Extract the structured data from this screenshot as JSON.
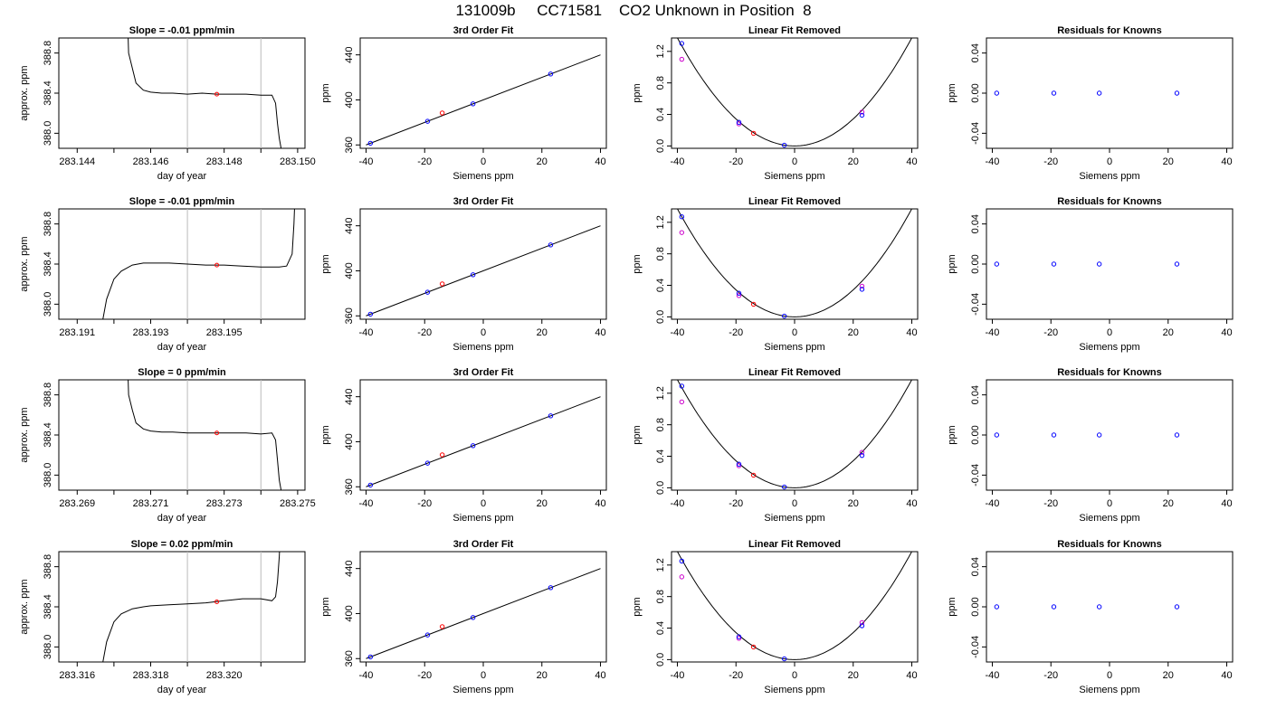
{
  "figure": {
    "title": "131009b     CC71581    CO2 Unknown in Position  8"
  },
  "colors": {
    "trace": "#000000",
    "known_point": "#0000ff",
    "unknown_point": "#ff0000",
    "alt_point": "#cc00cc",
    "window_line": "#bbbbbb"
  },
  "chart_data": [
    {
      "type": "line",
      "title": "Slope =  -0.01  ppm/min",
      "xlabel": "day of year",
      "ylabel": "approx. ppm",
      "xlim": [
        283.1435,
        283.1502
      ],
      "ylim": [
        387.85,
        388.95
      ],
      "xticks": [
        "283.144",
        "283.146",
        "283.148",
        "283.150"
      ],
      "xtick_values": [
        283.144,
        283.146,
        283.148,
        283.15
      ],
      "xminor_values": [
        283.145,
        283.147,
        283.149
      ],
      "yticks": [
        "388.0",
        "388.4",
        "388.8"
      ],
      "ytick_values": [
        388.0,
        388.4,
        388.8
      ],
      "window": [
        283.147,
        283.149
      ],
      "marker": {
        "x": 283.1478,
        "y": 388.39
      },
      "series": [
        {
          "x": [
            283.14535,
            283.1454,
            283.1455,
            283.1456,
            283.1458,
            283.146,
            283.1463,
            283.1466,
            283.147,
            283.1474,
            283.1478,
            283.1482,
            283.1486,
            283.149,
            283.1493,
            283.1494,
            283.14945,
            283.1495,
            283.14955
          ],
          "values": [
            389.4,
            388.8,
            388.65,
            388.5,
            388.43,
            388.41,
            388.4,
            388.4,
            388.39,
            388.4,
            388.39,
            388.39,
            388.39,
            388.38,
            388.38,
            388.3,
            388.1,
            387.95,
            387.85
          ]
        }
      ]
    },
    {
      "type": "scatter",
      "title": "3rd Order Fit",
      "xlabel": "Siemens ppm",
      "ylabel": "ppm",
      "xlim": [
        -42,
        42
      ],
      "ylim": [
        357,
        455
      ],
      "xticks": [
        "-40",
        "-20",
        "0",
        "20",
        "40"
      ],
      "xtick_values": [
        -40,
        -20,
        0,
        20,
        40
      ],
      "yticks": [
        "360",
        "400",
        "440"
      ],
      "ytick_values": [
        360,
        400,
        440
      ],
      "known": {
        "x": [
          -38.5,
          -19,
          -3.5,
          23
        ],
        "y": [
          361.5,
          381,
          396.5,
          423
        ]
      },
      "unknown": {
        "x": [
          -14
        ],
        "y": [
          388.4
        ]
      },
      "fit": {
        "x": [
          -40,
          40
        ],
        "y": [
          360,
          440
        ]
      }
    },
    {
      "type": "scatter",
      "title": "Linear Fit Removed",
      "xlabel": "Siemens ppm",
      "ylabel": "ppm",
      "xlim": [
        -42,
        42
      ],
      "ylim": [
        -0.03,
        1.37
      ],
      "xticks": [
        "-40",
        "-20",
        "0",
        "20",
        "40"
      ],
      "xtick_values": [
        -40,
        -20,
        0,
        20,
        40
      ],
      "yticks": [
        "0.0",
        "0.4",
        "0.8",
        "1.2"
      ],
      "ytick_values": [
        0,
        0.4,
        0.8,
        1.2
      ],
      "known": {
        "x": [
          -38.5,
          -19,
          -3.5,
          23
        ],
        "y": [
          1.3,
          0.3,
          0.01,
          0.39
        ]
      },
      "alt": {
        "x": [
          -38.5,
          -19,
          23
        ],
        "y": [
          1.1,
          0.28,
          0.43
        ]
      },
      "unknown": {
        "x": [
          -14
        ],
        "y": [
          0.16
        ]
      },
      "fit_curve": {
        "vertex": 0,
        "a": 0.000857
      }
    },
    {
      "type": "scatter",
      "title": "Residuals for Knowns",
      "xlabel": "Siemens ppm",
      "ylabel": "ppm",
      "xlim": [
        -42,
        42
      ],
      "ylim": [
        -0.055,
        0.055
      ],
      "xticks": [
        "-40",
        "-20",
        "0",
        "20",
        "40"
      ],
      "xtick_values": [
        -40,
        -20,
        0,
        20,
        40
      ],
      "yticks": [
        "-0.04",
        "0.00",
        "0.04"
      ],
      "ytick_values": [
        -0.04,
        0,
        0.04
      ],
      "known": {
        "x": [
          -38.5,
          -19,
          -3.5,
          23
        ],
        "y": [
          0,
          0,
          0,
          0
        ]
      }
    },
    {
      "type": "line",
      "title": "Slope =  -0.01  ppm/min",
      "xlabel": "day of year",
      "ylabel": "approx. ppm",
      "xlim": [
        283.1905,
        283.1972
      ],
      "ylim": [
        387.85,
        388.95
      ],
      "xticks": [
        "283.191",
        "283.193",
        "283.195"
      ],
      "xtick_values": [
        283.191,
        283.193,
        283.195
      ],
      "xminor_values": [
        283.192,
        283.194,
        283.196
      ],
      "yticks": [
        "388.0",
        "388.4",
        "388.8"
      ],
      "ytick_values": [
        388.0,
        388.4,
        388.8
      ],
      "window": [
        283.194,
        283.196
      ],
      "marker": {
        "x": 283.1948,
        "y": 388.39
      },
      "series": [
        {
          "x": [
            283.1917,
            283.1918,
            283.192,
            283.1922,
            283.1925,
            283.1928,
            283.193,
            283.1935,
            283.194,
            283.1945,
            283.195,
            283.1955,
            283.196,
            283.1965,
            283.1967,
            283.19685,
            283.1969,
            283.19695
          ],
          "values": [
            387.85,
            388.05,
            388.25,
            388.33,
            388.39,
            388.41,
            388.41,
            388.41,
            388.4,
            388.39,
            388.39,
            388.38,
            388.37,
            388.37,
            388.38,
            388.5,
            388.8,
            389.3
          ]
        }
      ]
    },
    {
      "type": "scatter",
      "title": "3rd Order Fit",
      "xlabel": "Siemens ppm",
      "ylabel": "ppm",
      "xlim": [
        -42,
        42
      ],
      "ylim": [
        357,
        455
      ],
      "xticks": [
        "-40",
        "-20",
        "0",
        "20",
        "40"
      ],
      "xtick_values": [
        -40,
        -20,
        0,
        20,
        40
      ],
      "yticks": [
        "360",
        "400",
        "440"
      ],
      "ytick_values": [
        360,
        400,
        440
      ],
      "known": {
        "x": [
          -38.5,
          -19,
          -3.5,
          23
        ],
        "y": [
          361.5,
          381,
          396.5,
          423
        ]
      },
      "unknown": {
        "x": [
          -14
        ],
        "y": [
          388.4
        ]
      },
      "fit": {
        "x": [
          -40,
          40
        ],
        "y": [
          360,
          440
        ]
      }
    },
    {
      "type": "scatter",
      "title": "Linear Fit Removed",
      "xlabel": "Siemens ppm",
      "ylabel": "ppm",
      "xlim": [
        -42,
        42
      ],
      "ylim": [
        -0.03,
        1.37
      ],
      "xticks": [
        "-40",
        "-20",
        "0",
        "20",
        "40"
      ],
      "xtick_values": [
        -40,
        -20,
        0,
        20,
        40
      ],
      "yticks": [
        "0.0",
        "0.4",
        "0.8",
        "1.2"
      ],
      "ytick_values": [
        0,
        0.4,
        0.8,
        1.2
      ],
      "known": {
        "x": [
          -38.5,
          -19,
          -3.5,
          23
        ],
        "y": [
          1.27,
          0.3,
          0.01,
          0.35
        ]
      },
      "alt": {
        "x": [
          -38.5,
          -19,
          23
        ],
        "y": [
          1.07,
          0.27,
          0.39
        ]
      },
      "unknown": {
        "x": [
          -14
        ],
        "y": [
          0.16
        ]
      },
      "fit_curve": {
        "vertex": 0,
        "a": 0.000857
      }
    },
    {
      "type": "scatter",
      "title": "Residuals for Knowns",
      "xlabel": "Siemens ppm",
      "ylabel": "ppm",
      "xlim": [
        -42,
        42
      ],
      "ylim": [
        -0.055,
        0.055
      ],
      "xticks": [
        "-40",
        "-20",
        "0",
        "20",
        "40"
      ],
      "xtick_values": [
        -40,
        -20,
        0,
        20,
        40
      ],
      "yticks": [
        "-0.04",
        "0.00",
        "0.04"
      ],
      "ytick_values": [
        -0.04,
        0,
        0.04
      ],
      "known": {
        "x": [
          -38.5,
          -19,
          -3.5,
          23
        ],
        "y": [
          0,
          0,
          0,
          0
        ]
      }
    },
    {
      "type": "line",
      "title": "Slope =  0  ppm/min",
      "xlabel": "day of year",
      "ylabel": "approx. ppm",
      "xlim": [
        283.2685,
        283.2752
      ],
      "ylim": [
        387.85,
        388.95
      ],
      "xticks": [
        "283.269",
        "283.271",
        "283.273",
        "283.275"
      ],
      "xtick_values": [
        283.269,
        283.271,
        283.273,
        283.275
      ],
      "xminor_values": [
        283.27,
        283.272,
        283.274
      ],
      "yticks": [
        "388.0",
        "388.4",
        "388.8"
      ],
      "ytick_values": [
        388.0,
        388.4,
        388.8
      ],
      "window": [
        283.272,
        283.274
      ],
      "marker": {
        "x": 283.2728,
        "y": 388.42
      },
      "series": [
        {
          "x": [
            283.27035,
            283.2704,
            283.2705,
            283.2706,
            283.2708,
            283.271,
            283.2713,
            283.2716,
            283.272,
            283.2724,
            283.2728,
            283.2732,
            283.2736,
            283.274,
            283.2743,
            283.2744,
            283.27445,
            283.2745,
            283.27455
          ],
          "values": [
            389.4,
            388.8,
            388.65,
            388.52,
            388.46,
            388.44,
            388.43,
            388.43,
            388.42,
            388.42,
            388.42,
            388.42,
            388.42,
            388.41,
            388.42,
            388.35,
            388.15,
            387.95,
            387.85
          ]
        }
      ]
    },
    {
      "type": "scatter",
      "title": "3rd Order Fit",
      "xlabel": "Siemens ppm",
      "ylabel": "ppm",
      "xlim": [
        -42,
        42
      ],
      "ylim": [
        357,
        455
      ],
      "xticks": [
        "-40",
        "-20",
        "0",
        "20",
        "40"
      ],
      "xtick_values": [
        -40,
        -20,
        0,
        20,
        40
      ],
      "yticks": [
        "360",
        "400",
        "440"
      ],
      "ytick_values": [
        360,
        400,
        440
      ],
      "known": {
        "x": [
          -38.5,
          -19,
          -3.5,
          23
        ],
        "y": [
          361.5,
          381,
          396.5,
          423
        ]
      },
      "unknown": {
        "x": [
          -14
        ],
        "y": [
          388.4
        ]
      },
      "fit": {
        "x": [
          -40,
          40
        ],
        "y": [
          360,
          440
        ]
      }
    },
    {
      "type": "scatter",
      "title": "Linear Fit Removed",
      "xlabel": "Siemens ppm",
      "ylabel": "ppm",
      "xlim": [
        -42,
        42
      ],
      "ylim": [
        -0.03,
        1.37
      ],
      "xticks": [
        "-40",
        "-20",
        "0",
        "20",
        "40"
      ],
      "xtick_values": [
        -40,
        -20,
        0,
        20,
        40
      ],
      "yticks": [
        "0.0",
        "0.4",
        "0.8",
        "1.2"
      ],
      "ytick_values": [
        0,
        0.4,
        0.8,
        1.2
      ],
      "known": {
        "x": [
          -38.5,
          -19,
          -3.5,
          23
        ],
        "y": [
          1.29,
          0.3,
          0.01,
          0.41
        ]
      },
      "alt": {
        "x": [
          -38.5,
          -19,
          23
        ],
        "y": [
          1.09,
          0.28,
          0.45
        ]
      },
      "unknown": {
        "x": [
          -14
        ],
        "y": [
          0.16
        ]
      },
      "fit_curve": {
        "vertex": 0,
        "a": 0.000857
      }
    },
    {
      "type": "scatter",
      "title": "Residuals for Knowns",
      "xlabel": "Siemens ppm",
      "ylabel": "ppm",
      "xlim": [
        -42,
        42
      ],
      "ylim": [
        -0.055,
        0.055
      ],
      "xticks": [
        "-40",
        "-20",
        "0",
        "20",
        "40"
      ],
      "xtick_values": [
        -40,
        -20,
        0,
        20,
        40
      ],
      "yticks": [
        "-0.04",
        "0.00",
        "0.04"
      ],
      "ytick_values": [
        -0.04,
        0,
        0.04
      ],
      "known": {
        "x": [
          -38.5,
          -19,
          -3.5,
          23
        ],
        "y": [
          0,
          0,
          0,
          0
        ]
      }
    },
    {
      "type": "line",
      "title": "Slope =  0.02  ppm/min",
      "xlabel": "day of year",
      "ylabel": "approx. ppm",
      "xlim": [
        283.3155,
        283.3222
      ],
      "ylim": [
        387.85,
        388.95
      ],
      "xticks": [
        "283.316",
        "283.318",
        "283.320"
      ],
      "xtick_values": [
        283.316,
        283.318,
        283.32
      ],
      "xminor_values": [
        283.317,
        283.319,
        283.321
      ],
      "yticks": [
        "388.0",
        "388.4",
        "388.8"
      ],
      "ytick_values": [
        388.0,
        388.4,
        388.8
      ],
      "window": [
        283.319,
        283.321
      ],
      "marker": {
        "x": 283.3198,
        "y": 388.45
      },
      "series": [
        {
          "x": [
            283.3167,
            283.3168,
            283.317,
            283.3172,
            283.3175,
            283.3178,
            283.318,
            283.3185,
            283.319,
            283.3195,
            283.32,
            283.3205,
            283.321,
            283.3213,
            283.3214,
            283.32145,
            283.3215,
            283.32155
          ],
          "values": [
            387.85,
            388.05,
            388.25,
            388.33,
            388.38,
            388.4,
            388.41,
            388.42,
            388.43,
            388.44,
            388.46,
            388.48,
            388.48,
            388.46,
            388.5,
            388.65,
            388.9,
            389.3
          ]
        }
      ]
    },
    {
      "type": "scatter",
      "title": "3rd Order Fit",
      "xlabel": "Siemens ppm",
      "ylabel": "ppm",
      "xlim": [
        -42,
        42
      ],
      "ylim": [
        357,
        455
      ],
      "xticks": [
        "-40",
        "-20",
        "0",
        "20",
        "40"
      ],
      "xtick_values": [
        -40,
        -20,
        0,
        20,
        40
      ],
      "yticks": [
        "360",
        "400",
        "440"
      ],
      "ytick_values": [
        360,
        400,
        440
      ],
      "known": {
        "x": [
          -38.5,
          -19,
          -3.5,
          23
        ],
        "y": [
          361.5,
          381,
          396.5,
          423
        ]
      },
      "unknown": {
        "x": [
          -14
        ],
        "y": [
          388.4
        ]
      },
      "fit": {
        "x": [
          -40,
          40
        ],
        "y": [
          360,
          440
        ]
      }
    },
    {
      "type": "scatter",
      "title": "Linear Fit Removed",
      "xlabel": "Siemens ppm",
      "ylabel": "ppm",
      "xlim": [
        -42,
        42
      ],
      "ylim": [
        -0.03,
        1.37
      ],
      "xticks": [
        "-40",
        "-20",
        "0",
        "20",
        "40"
      ],
      "xtick_values": [
        -40,
        -20,
        0,
        20,
        40
      ],
      "yticks": [
        "0.0",
        "0.4",
        "0.8",
        "1.2"
      ],
      "ytick_values": [
        0,
        0.4,
        0.8,
        1.2
      ],
      "known": {
        "x": [
          -38.5,
          -19,
          -3.5,
          23
        ],
        "y": [
          1.25,
          0.29,
          0.01,
          0.43
        ]
      },
      "alt": {
        "x": [
          -38.5,
          -19,
          23
        ],
        "y": [
          1.05,
          0.27,
          0.47
        ]
      },
      "unknown": {
        "x": [
          -14
        ],
        "y": [
          0.16
        ]
      },
      "fit_curve": {
        "vertex": 0,
        "a": 0.000857
      }
    },
    {
      "type": "scatter",
      "title": "Residuals for Knowns",
      "xlabel": "Siemens ppm",
      "ylabel": "ppm",
      "xlim": [
        -42,
        42
      ],
      "ylim": [
        -0.055,
        0.055
      ],
      "xticks": [
        "-40",
        "-20",
        "0",
        "20",
        "40"
      ],
      "xtick_values": [
        -40,
        -20,
        0,
        20,
        40
      ],
      "yticks": [
        "-0.04",
        "0.00",
        "0.04"
      ],
      "ytick_values": [
        -0.04,
        0,
        0.04
      ],
      "known": {
        "x": [
          -38.5,
          -19,
          -3.5,
          23
        ],
        "y": [
          0,
          0,
          0,
          0
        ]
      }
    }
  ]
}
